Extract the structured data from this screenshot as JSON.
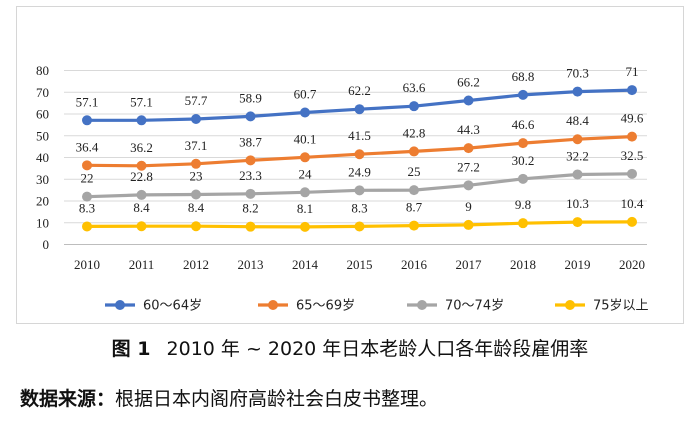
{
  "chart_data": {
    "type": "line",
    "title": "",
    "xlabel": "",
    "ylabel": "",
    "categories": [
      "2010",
      "2011",
      "2012",
      "2013",
      "2014",
      "2015",
      "2016",
      "2017",
      "2018",
      "2019",
      "2020"
    ],
    "ylim": [
      0,
      80
    ],
    "yticks": [
      0,
      10,
      20,
      30,
      40,
      50,
      60,
      70,
      80
    ],
    "grid": true,
    "legend_position": "bottom",
    "series": [
      {
        "name": "60～64岁",
        "color": "#4472C4",
        "values": [
          57.1,
          57.1,
          57.7,
          58.9,
          60.7,
          62.2,
          63.6,
          66.2,
          68.8,
          70.3,
          71
        ]
      },
      {
        "name": "65～69岁",
        "color": "#ED7D31",
        "values": [
          36.4,
          36.2,
          37.1,
          38.7,
          40.1,
          41.5,
          42.8,
          44.3,
          46.6,
          48.4,
          49.6
        ]
      },
      {
        "name": "70～74岁",
        "color": "#A5A5A5",
        "values": [
          22,
          22.8,
          23,
          23.3,
          24,
          24.9,
          25,
          27.2,
          30.2,
          32.2,
          32.5
        ]
      },
      {
        "name": "75岁以上",
        "color": "#FFC000",
        "values": [
          8.3,
          8.4,
          8.4,
          8.2,
          8.1,
          8.3,
          8.7,
          9,
          9.8,
          10.3,
          10.4
        ]
      }
    ]
  },
  "caption": {
    "figure_number": "图 1",
    "title": "2010 年 ~ 2020 年日本老龄人口各年龄段雇佣率"
  },
  "source": {
    "label": "数据来源：",
    "text": "根据日本内阁府高龄社会白皮书整理。"
  }
}
